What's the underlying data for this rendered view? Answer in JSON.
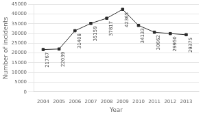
{
  "chart_data": {
    "type": "line",
    "xlabel": "Year",
    "ylabel": "Number of incidents",
    "x": [
      2004,
      2005,
      2006,
      2007,
      2008,
      2009,
      2010,
      2011,
      2012,
      2013
    ],
    "values": [
      21767,
      22039,
      31408,
      35159,
      37817,
      42365,
      34133,
      30662,
      29950,
      29375
    ],
    "xlim": [
      2003.4,
      2013.8
    ],
    "xticks": [
      2004,
      2005,
      2006,
      2007,
      2008,
      2009,
      2010,
      2011,
      2012,
      2013
    ],
    "ylim": [
      0,
      45000
    ],
    "yticks": [
      0,
      5000,
      10000,
      15000,
      20000,
      25000,
      30000,
      35000,
      40000,
      45000
    ],
    "color": "#2b2b2b",
    "marker": "square",
    "grid": "y",
    "data_labels": true
  }
}
